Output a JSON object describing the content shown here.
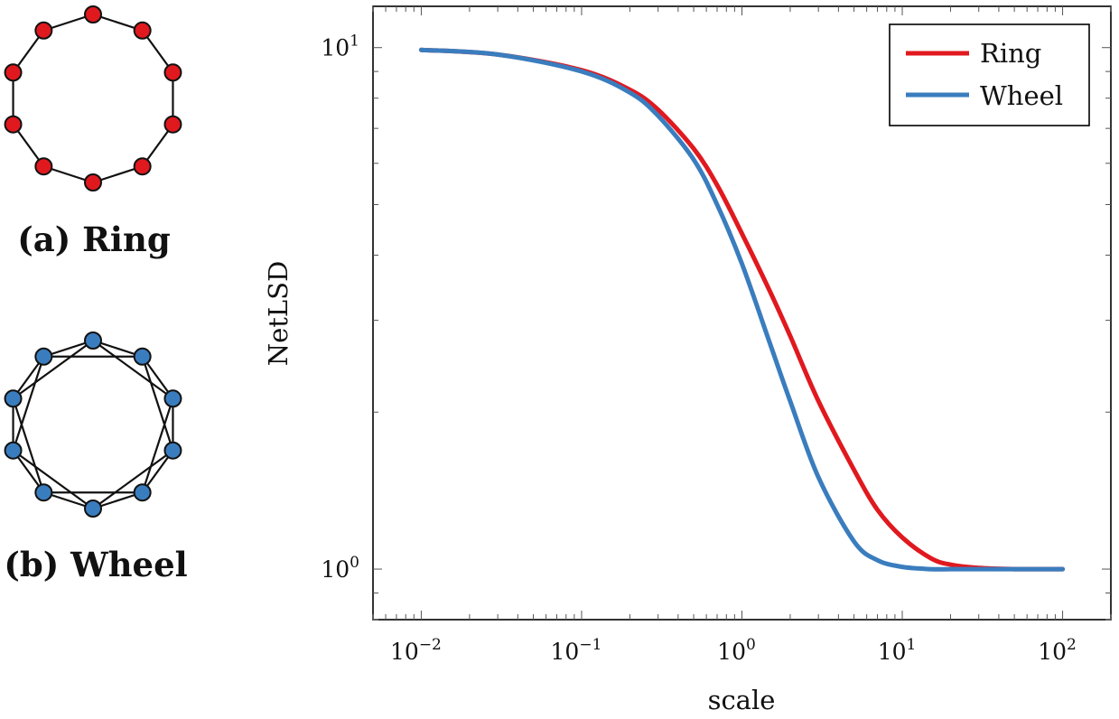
{
  "graphs": [
    {
      "caption": "(a) Ring",
      "node_color": "#e0191f",
      "nodes": 10,
      "edge_type": "cycle"
    },
    {
      "caption": "(b) Wheel",
      "node_color": "#3a7dbe",
      "nodes": 10,
      "edge_type": "cycle-plus-skip-one"
    }
  ],
  "chart_data": {
    "type": "line",
    "xlabel": "scale",
    "ylabel": "NetLSD",
    "x_scale": "log",
    "y_scale": "log",
    "xlim": [
      0.005,
      200
    ],
    "ylim": [
      0.8,
      12
    ],
    "x_ticks": [
      {
        "base": "10",
        "exp": "−2",
        "value": 0.01
      },
      {
        "base": "10",
        "exp": "−1",
        "value": 0.1
      },
      {
        "base": "10",
        "exp": "0",
        "value": 1
      },
      {
        "base": "10",
        "exp": "1",
        "value": 10
      },
      {
        "base": "10",
        "exp": "2",
        "value": 100
      }
    ],
    "y_ticks": [
      {
        "base": "10",
        "exp": "0",
        "value": 1
      },
      {
        "base": "10",
        "exp": "1",
        "value": 10
      }
    ],
    "grid": false,
    "legend_position": "top-right",
    "series": [
      {
        "name": "Ring",
        "color": "#e0191f",
        "x": [
          0.01,
          0.03,
          0.1,
          0.2,
          0.3,
          0.5,
          0.7,
          1,
          1.5,
          2,
          3,
          5,
          7,
          10,
          15,
          20,
          30,
          50,
          100
        ],
        "y": [
          9.9,
          9.7,
          9.05,
          8.3,
          7.6,
          6.4,
          5.45,
          4.4,
          3.4,
          2.8,
          2.1,
          1.55,
          1.3,
          1.15,
          1.05,
          1.02,
          1.005,
          1.0,
          1.0
        ]
      },
      {
        "name": "Wheel",
        "color": "#3a7dbe",
        "x": [
          0.01,
          0.03,
          0.1,
          0.2,
          0.3,
          0.5,
          0.7,
          1,
          1.5,
          2,
          3,
          5,
          7,
          10,
          15,
          20,
          30,
          50,
          100
        ],
        "y": [
          9.9,
          9.7,
          9.0,
          8.2,
          7.4,
          6.1,
          5.0,
          3.85,
          2.7,
          2.1,
          1.5,
          1.13,
          1.04,
          1.01,
          1.0,
          1.0,
          1.0,
          1.0,
          1.0
        ]
      }
    ]
  }
}
